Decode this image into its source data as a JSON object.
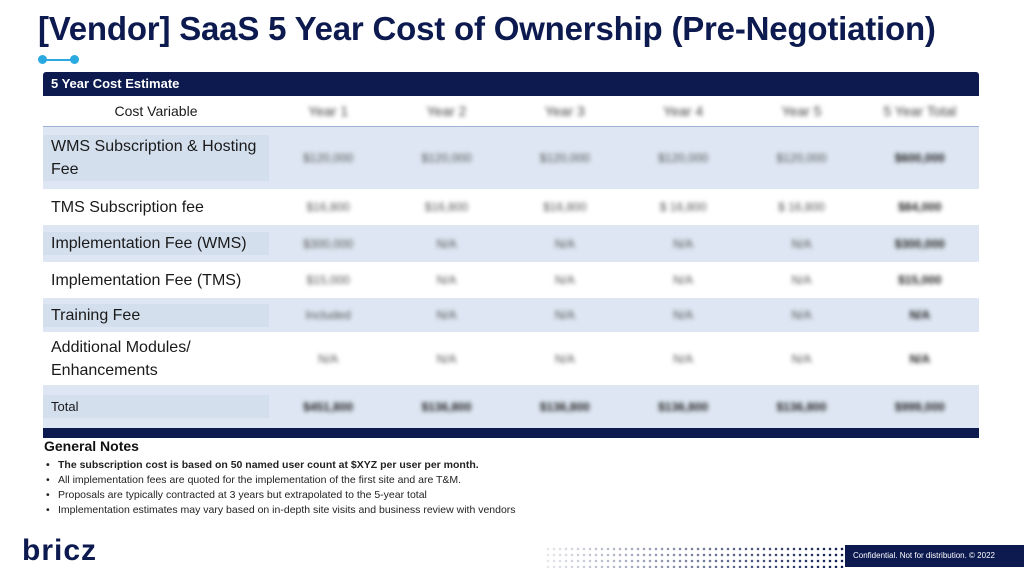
{
  "title": "[Vendor] SaaS 5 Year Cost of Ownership (Pre-Negotiation)",
  "table": {
    "header_bar": "5 Year Cost Estimate",
    "columns": [
      "Cost Variable",
      "Year 1",
      "Year 2",
      "Year 3",
      "Year 4",
      "Year 5",
      "5 Year Total"
    ],
    "rows": [
      {
        "label": "WMS Subscription & Hosting Fee",
        "values": [
          "$120,000",
          "$120,000",
          "$120,000",
          "$120,000",
          "$120,000",
          "$600,000"
        ]
      },
      {
        "label": "TMS Subscription fee",
        "values": [
          "$16,800",
          "$16,800",
          "$16,800",
          "$ 16,800",
          "$ 16,800",
          "$84,000"
        ]
      },
      {
        "label": "Implementation Fee (WMS)",
        "values": [
          "$300,000",
          "N/A",
          "N/A",
          "N/A",
          "N/A",
          "$300,000"
        ]
      },
      {
        "label": "Implementation Fee (TMS)",
        "values": [
          "$15,000",
          "N/A",
          "N/A",
          "N/A",
          "N/A",
          "$15,000"
        ]
      },
      {
        "label": "Training Fee",
        "values": [
          "Included",
          "N/A",
          "N/A",
          "N/A",
          "N/A",
          "N/A"
        ]
      },
      {
        "label": "Additional Modules/ Enhancements",
        "values": [
          "N/A",
          "N/A",
          "N/A",
          "N/A",
          "N/A",
          "N/A"
        ]
      },
      {
        "label": "Total",
        "values": [
          "$451,800",
          "$136,800",
          "$136,800",
          "$136,800",
          "$136,800",
          "$999,000"
        ]
      }
    ]
  },
  "notes": {
    "title": "General Notes",
    "items": [
      "The subscription cost is based on 50 named user count at $XYZ per user per month.",
      "All implementation fees are quoted for the implementation of the first site and are T&M.",
      "Proposals are typically contracted at 3 years but extrapolated to the 5-year total",
      "Implementation estimates may vary based on in-depth site visits and business review with vendors"
    ]
  },
  "footer": {
    "logo": "bricz",
    "confidential": "Confidential. Not for distribution. © 2022"
  },
  "colors": {
    "navy": "#0c1a4f",
    "accent": "#2aa8e0",
    "row_shade": "#dde6f2"
  }
}
